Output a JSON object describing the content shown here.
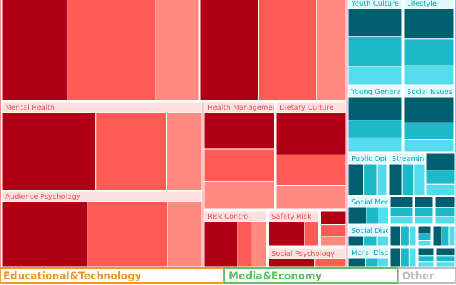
{
  "chart_data": {
    "type": "treemap",
    "colors": {
      "red_dark": "#b00015",
      "red_mid": "#ff5a55",
      "red_light": "#ff8a80",
      "red_header": "#ffe0e0",
      "teal_dark": "#005f6e",
      "teal_mid": "#1fb8c8",
      "teal_light": "#54dcec",
      "teal_header": "#dffaff",
      "orange": "#f0962a",
      "green": "#5cc35e",
      "gray": "#bdbdbd"
    },
    "groups": [
      {
        "name": "",
        "color": "red",
        "children": [
          {
            "name": "",
            "sub": [
              3,
              4,
              2
            ]
          },
          {
            "name": "",
            "sub": [
              4,
              4,
              2
            ]
          },
          {
            "name": "Mental Health",
            "sub": [
              4,
              3,
              1.5
            ]
          },
          {
            "name": "Audience Psychology",
            "sub": [
              3,
              2.8,
              1.2
            ]
          },
          {
            "name": "Health Management",
            "sub": [
              2,
              1.8,
              1.5
            ]
          },
          {
            "name": "Dietary Culture",
            "sub": [
              2.2,
              1.6,
              1.2
            ]
          },
          {
            "name": "Risk Control",
            "sub": [
              2,
              0.9,
              0.9
            ]
          },
          {
            "name": "Safety Risk",
            "sub": [
              1,
              0.4
            ]
          },
          {
            "name": "Social Psychology",
            "sub": [
              0.6,
              0.4
            ]
          }
        ]
      },
      {
        "name": "",
        "color": "teal",
        "children": [
          {
            "name": "Youth Culture",
            "sub": [
              3,
              3.2,
              2
            ]
          },
          {
            "name": "Lifestyle",
            "sub": [
              3.2,
              2.8,
              2
            ]
          },
          {
            "name": "Young Generation",
            "sub": [
              2.5,
              1.9,
              1.5
            ]
          },
          {
            "name": "Social Issues",
            "sub": [
              2.5,
              1.6,
              1.2
            ]
          },
          {
            "name": "Public Opinion",
            "sub": [
              1.4,
              1.2,
              0.9
            ]
          },
          {
            "name": "Streaming",
            "sub": [
              1.2,
              1.1,
              1
            ]
          },
          {
            "name": "Social Media",
            "sub": [
              1.2,
              0.8,
              0.7
            ]
          },
          {
            "name": "Social Discourse",
            "sub": [
              0.8,
              0.7,
              0.6
            ]
          },
          {
            "name": "Moral Discussion",
            "sub": [
              0.8,
              0.6,
              0.5
            ]
          }
        ]
      }
    ],
    "bottom_groups": [
      {
        "name": "Educational&Technology",
        "color": "orange"
      },
      {
        "name": "Media&Economy",
        "color": "green"
      },
      {
        "name": "Other",
        "color": "gray"
      }
    ]
  }
}
